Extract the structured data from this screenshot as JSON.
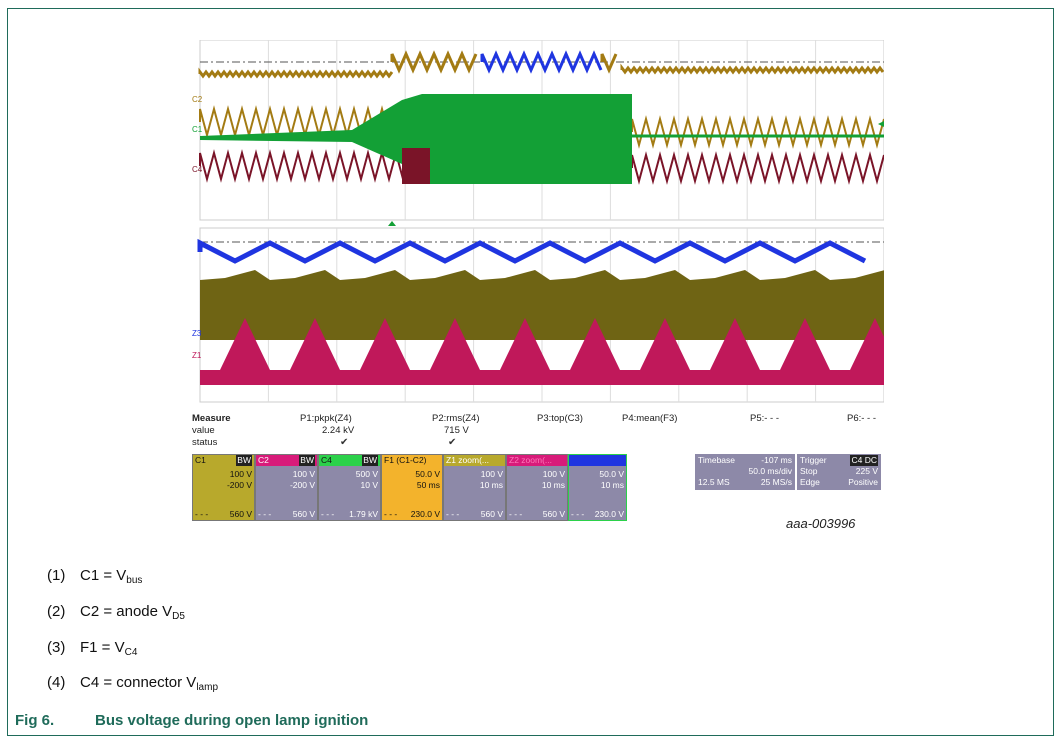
{
  "screen": {
    "marker_top_labels": [
      "C1",
      "C2",
      "C4"
    ],
    "marker_bottom_labels": [
      "Z3",
      "Z1"
    ]
  },
  "measure": {
    "header": "Measure",
    "value_label": "value",
    "status_label": "status",
    "params": [
      {
        "name": "P1:pkpk(Z4)",
        "value": "2.24 kV",
        "status": "✔"
      },
      {
        "name": "P2:rms(Z4)",
        "value": "715 V",
        "status": "✔"
      },
      {
        "name": "P3:top(C3)",
        "value": "",
        "status": ""
      },
      {
        "name": "P4:mean(F3)",
        "value": "",
        "status": ""
      },
      {
        "name": "P5:- - -",
        "value": "",
        "status": ""
      },
      {
        "name": "P6:- - -",
        "value": "",
        "status": ""
      }
    ]
  },
  "channels": [
    {
      "title": "C1",
      "tag": "BW",
      "v1": "100 V",
      "v2": "-200 V",
      "bl": "- - -",
      "br": "560 V",
      "color": "#b8a92c"
    },
    {
      "title": "C2",
      "tag": "BW",
      "v1": "100 V",
      "v2": "-200 V",
      "bl": "- - -",
      "br": "560 V",
      "color": "#8d89a8"
    },
    {
      "title": "C4",
      "tag": "BW",
      "v1": "500 V",
      "v2": "10 V",
      "bl": "- - -",
      "br": "1.79 kV",
      "color": "#8d89a8"
    },
    {
      "title": "F1  (C1-C2)",
      "tag": "",
      "v1": "50.0 V",
      "v2": "50 ms",
      "bl": "- - -",
      "br": "230.0 V",
      "color": "#f3b32c"
    },
    {
      "title": "Z1  zoom(...",
      "tag": "",
      "v1": "100 V",
      "v2": "10 ms",
      "bl": "- - -",
      "br": "560 V",
      "color": "#8d89a8"
    },
    {
      "title": "Z2  zoom(...",
      "tag": "",
      "v1": "100 V",
      "v2": "10 ms",
      "bl": "- - -",
      "br": "560 V",
      "color": "#8d89a8"
    },
    {
      "title": "",
      "tag": "",
      "v1": "50.0 V",
      "v2": "10 ms",
      "bl": "- - -",
      "br": "230.0 V",
      "color": "#8d89a8"
    }
  ],
  "timebase": {
    "label": "Timebase",
    "offset": "-107 ms",
    "div": "50.0 ms/div",
    "samples": "12.5 MS",
    "rate": "25 MS/s"
  },
  "trigger": {
    "label": "Trigger",
    "tag": "C4 DC",
    "mode": "Stop",
    "level": "225 V",
    "type": "Edge",
    "slope": "Positive"
  },
  "figure_ref": "aaa-003996",
  "legend": [
    {
      "num": "(1)",
      "pre": "C1 = V",
      "sub": "bus"
    },
    {
      "num": "(2)",
      "pre": "C2 = anode V",
      "sub": "D5"
    },
    {
      "num": "(3)",
      "pre": "F1 = V",
      "sub": "C4"
    },
    {
      "num": "(4)",
      "pre": "C4 = connector V",
      "sub": "lamp"
    }
  ],
  "caption": {
    "fig": "Fig 6.",
    "title": "Bus voltage during open lamp ignition"
  },
  "colors": {
    "c1": "#a37b13",
    "c2": "#7a1428",
    "c4": "#13a036",
    "f1": "#1f35e0",
    "z_olive": "#6f6414",
    "z_magenta": "#c0185a",
    "accent": "#1f6b5a"
  }
}
